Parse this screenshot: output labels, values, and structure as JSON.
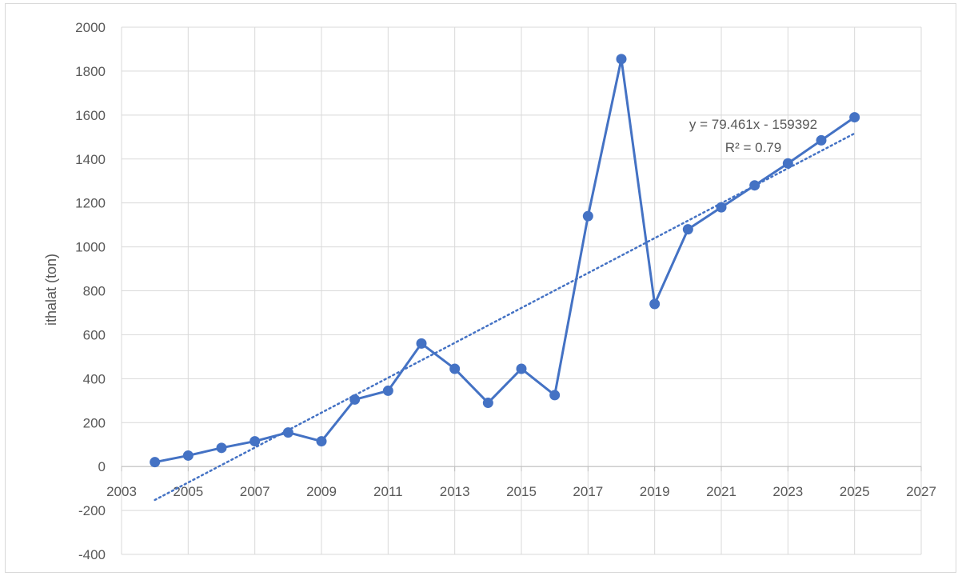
{
  "chart_data": {
    "type": "scatter",
    "ylabel": "ithalat (ton)",
    "xlabel": "",
    "title": "",
    "xlim": [
      2003,
      2027
    ],
    "ylim": [
      -400,
      2000
    ],
    "x_ticks": [
      2003,
      2005,
      2007,
      2009,
      2011,
      2013,
      2015,
      2017,
      2019,
      2021,
      2023,
      2025,
      2027
    ],
    "y_ticks": [
      -400,
      -200,
      0,
      200,
      400,
      600,
      800,
      1000,
      1200,
      1400,
      1600,
      1800,
      2000
    ],
    "grid": true,
    "series": [
      {
        "style": "line-with-markers",
        "x": [
          2004,
          2005,
          2006,
          2007,
          2008,
          2009,
          2010,
          2011,
          2012,
          2013,
          2014,
          2015,
          2016,
          2017,
          2018,
          2019,
          2020,
          2021,
          2022,
          2023,
          2024,
          2025
        ],
        "y": [
          20,
          50,
          85,
          115,
          155,
          115,
          305,
          345,
          560,
          445,
          290,
          445,
          325,
          1140,
          1855,
          740,
          1080,
          1180,
          1280,
          1380,
          1485,
          1590
        ]
      }
    ],
    "trendline": {
      "type": "linear",
      "slope": 79.461,
      "intercept": -159392,
      "x_range": [
        2004,
        2025
      ],
      "equation_label": "y = 79.461x - 159392",
      "r2_label": "R² = 0.79",
      "style": "dotted"
    },
    "colors": {
      "series": "#4472c4",
      "grid": "#d9d9d9",
      "text": "#595959"
    }
  }
}
